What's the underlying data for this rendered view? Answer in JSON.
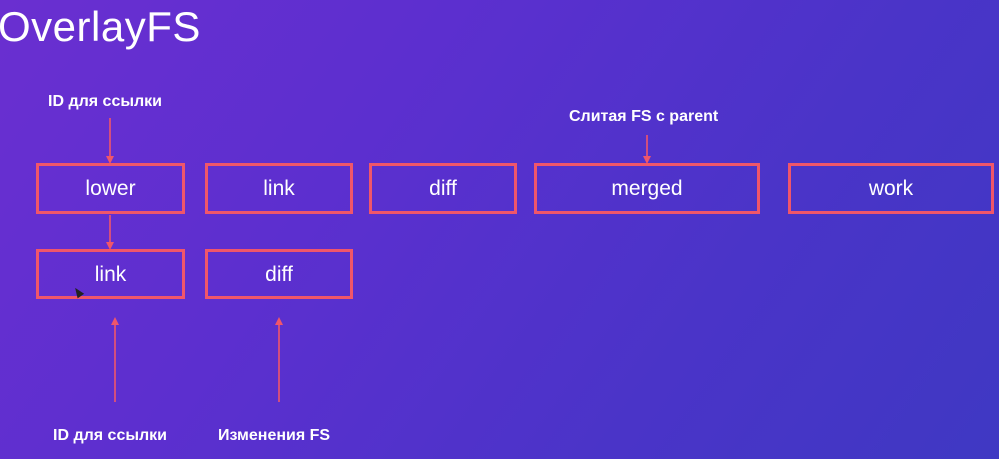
{
  "title": "OverlayFS",
  "boxes": {
    "top_row": [
      "lower",
      "link",
      "diff",
      "merged",
      "work"
    ],
    "bottom_row": [
      "link",
      "diff"
    ]
  },
  "annotations": {
    "top_lower": "ID для ссылки",
    "top_merged": "Слитая FS с parent",
    "bottom_link": "ID для ссылки",
    "bottom_diff": "Изменения FS"
  },
  "colors": {
    "box_border": "#f0566a",
    "arrow": "#f0566a",
    "background_start": "#6a2fd0",
    "background_end": "#3f38c3",
    "text": "#ffffff"
  }
}
